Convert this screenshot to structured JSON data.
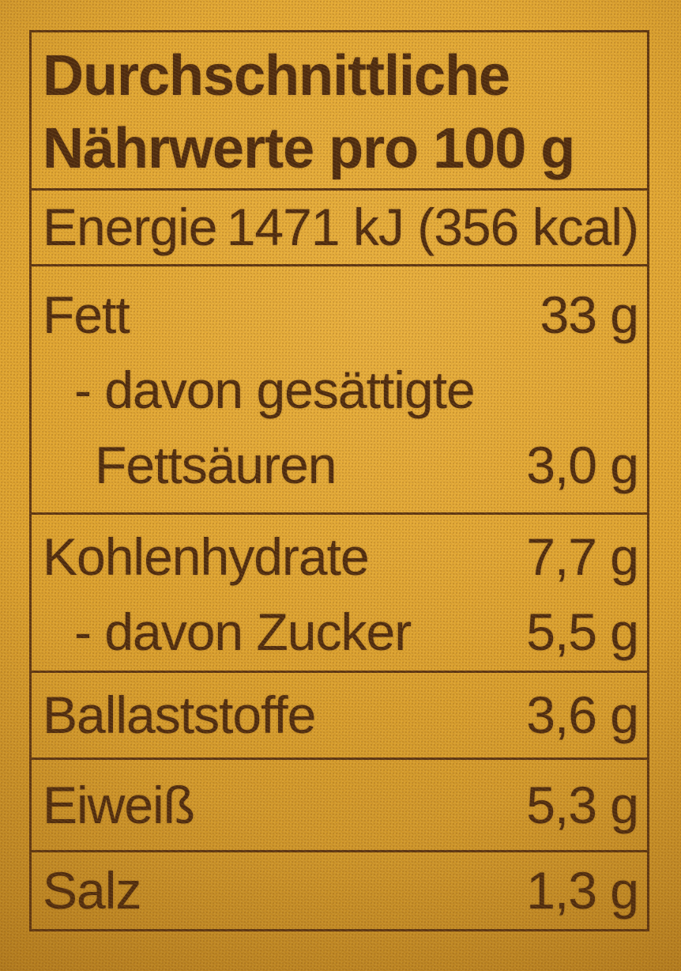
{
  "panel": {
    "title_line1": "Durchschnittliche",
    "title_line2": "Nährwerte pro 100 g",
    "colors": {
      "package_background": "#dfa430",
      "ink": "#4c2a0f",
      "rule": "#5b3513"
    },
    "rows": [
      {
        "label": "Energie",
        "value": "1471 kJ (356 kcal)"
      },
      {
        "label": "Fett",
        "value": "33 g"
      },
      {
        "label": "- davon gesättigte",
        "value": ""
      },
      {
        "label": "Fettsäuren",
        "value": "3,0 g"
      },
      {
        "label": "Kohlenhydrate",
        "value": "7,7 g"
      },
      {
        "label": "- davon Zucker",
        "value": "5,5 g"
      },
      {
        "label": "Ballaststoffe",
        "value": "3,6 g"
      },
      {
        "label": "Eiweiß",
        "value": "5,3 g"
      },
      {
        "label": "Salz",
        "value": "1,3 g"
      }
    ]
  }
}
